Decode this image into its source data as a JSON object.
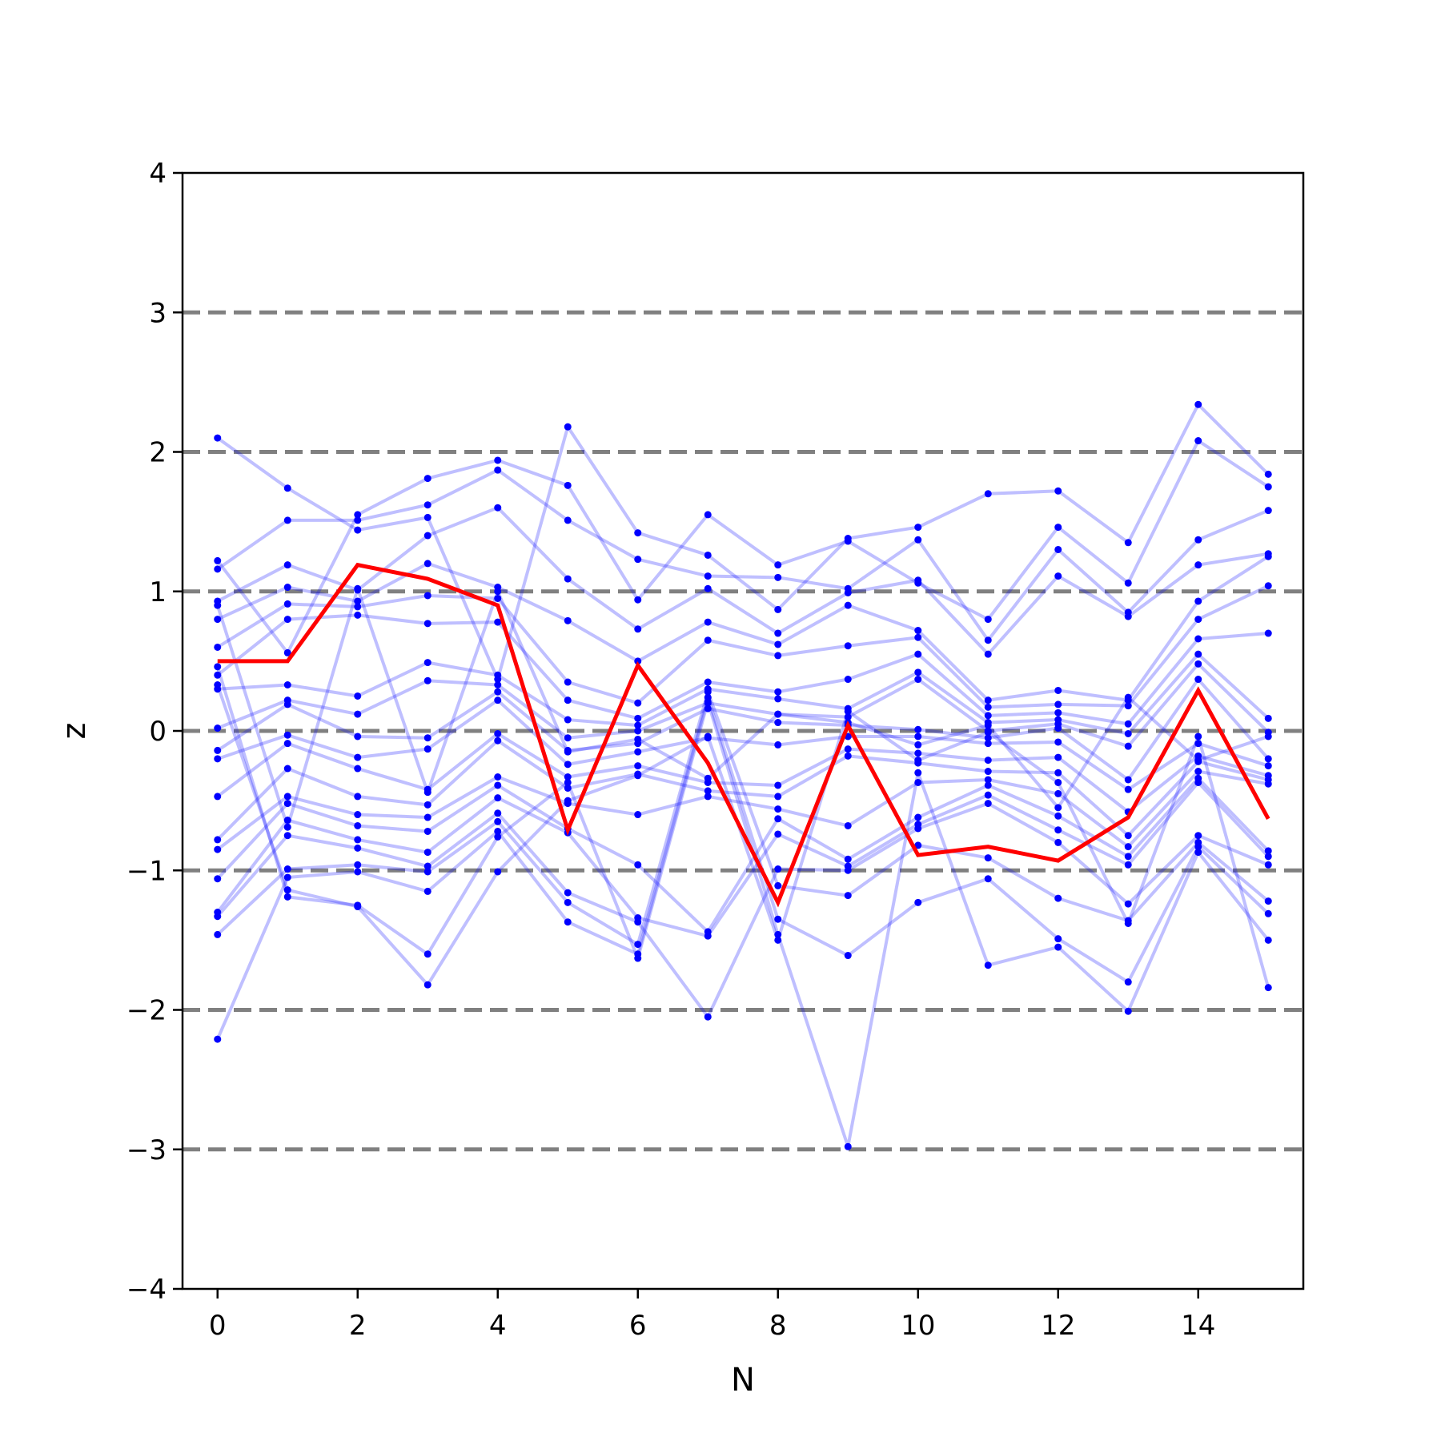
{
  "chart_data": {
    "type": "line",
    "xlabel": "N",
    "ylabel": "z",
    "xlim": [
      -0.5,
      15.5
    ],
    "ylim": [
      -4,
      4
    ],
    "x_ticks": [
      0,
      2,
      4,
      6,
      8,
      10,
      12,
      14
    ],
    "y_ticks": [
      -4,
      -3,
      -2,
      -1,
      0,
      1,
      2,
      3,
      4
    ],
    "y_tick_labels": [
      "−4",
      "−3",
      "−2",
      "−1",
      "0",
      "1",
      "2",
      "3",
      "4"
    ],
    "reference_lines": [
      -3,
      -2,
      -1,
      0,
      1,
      2,
      3
    ],
    "grid": false,
    "legend": "none",
    "colors": {
      "samples": "#0000ff",
      "highlight": "#ff0000",
      "reference": "#808080",
      "axes": "#000000"
    },
    "x": [
      0,
      1,
      2,
      3,
      4,
      5,
      6,
      7,
      8,
      9,
      10,
      11,
      12,
      13,
      14,
      15
    ],
    "highlight_series": {
      "values": [
        0.5,
        0.5,
        1.19,
        1.09,
        0.9,
        -0.71,
        0.47,
        -0.23,
        -1.23,
        0.04,
        -0.89,
        -0.83,
        -0.93,
        -0.62,
        0.29,
        -0.63
      ]
    },
    "series": [
      {
        "values": [
          2.1,
          1.74,
          1.44,
          1.53,
          0.37,
          2.18,
          1.42,
          1.26,
          0.87,
          1.38,
          1.46,
          1.7,
          1.72,
          1.35,
          2.34,
          1.84
        ]
      },
      {
        "values": [
          1.22,
          0.56,
          1.55,
          1.81,
          1.94,
          1.76,
          0.94,
          1.55,
          1.19,
          1.36,
          1.06,
          0.8,
          1.46,
          1.06,
          2.08,
          1.75
        ]
      },
      {
        "values": [
          1.16,
          1.51,
          1.51,
          1.62,
          1.87,
          1.51,
          1.23,
          1.11,
          1.1,
          1.02,
          1.37,
          0.65,
          1.3,
          0.85,
          1.37,
          1.58
        ]
      },
      {
        "values": [
          0.93,
          1.19,
          1.01,
          1.4,
          1.6,
          1.09,
          0.73,
          1.02,
          0.7,
          0.99,
          1.08,
          0.55,
          1.11,
          0.82,
          1.19,
          1.27
        ]
      },
      {
        "values": [
          0.8,
          1.03,
          0.93,
          1.2,
          1.03,
          0.79,
          0.5,
          0.78,
          0.62,
          0.9,
          0.72,
          0.22,
          0.29,
          0.22,
          0.93,
          1.25
        ]
      },
      {
        "values": [
          0.6,
          0.91,
          0.89,
          0.97,
          0.95,
          0.35,
          0.2,
          0.65,
          0.54,
          0.61,
          0.67,
          0.17,
          0.19,
          0.18,
          0.8,
          1.04
        ]
      },
      {
        "values": [
          0.4,
          0.8,
          0.83,
          0.77,
          0.78,
          0.22,
          0.09,
          0.35,
          0.28,
          0.37,
          0.55,
          0.11,
          0.13,
          0.05,
          0.66,
          0.7
        ]
      },
      {
        "values": [
          0.3,
          0.33,
          0.25,
          0.49,
          0.4,
          0.08,
          0.04,
          0.3,
          0.23,
          0.16,
          0.42,
          0.06,
          0.08,
          -0.02,
          0.55,
          0.09
        ]
      },
      {
        "values": [
          0.02,
          0.22,
          0.12,
          0.36,
          0.33,
          -0.05,
          0.0,
          0.2,
          0.12,
          0.1,
          0.37,
          0.0,
          0.05,
          -0.11,
          0.48,
          -0.01
        ]
      },
      {
        "values": [
          -0.14,
          0.19,
          -0.04,
          -0.05,
          0.28,
          -0.14,
          -0.09,
          0.16,
          0.06,
          0.04,
          0.01,
          -0.05,
          0.02,
          -0.35,
          0.37,
          -0.2
        ]
      },
      {
        "values": [
          -0.2,
          -0.03,
          -0.19,
          -0.13,
          0.22,
          -0.24,
          -0.15,
          -0.05,
          -0.1,
          -0.04,
          -0.04,
          -0.09,
          -0.08,
          -0.42,
          -0.09,
          -0.25
        ]
      },
      {
        "values": [
          -0.47,
          -0.09,
          -0.27,
          -0.42,
          -0.02,
          -0.33,
          -0.25,
          -0.37,
          -0.39,
          -0.13,
          -0.16,
          -0.21,
          -0.19,
          -0.58,
          -0.18,
          -0.32
        ]
      },
      {
        "values": [
          -0.78,
          -0.27,
          -0.47,
          -0.53,
          -0.07,
          -0.41,
          -0.31,
          -0.43,
          -0.47,
          -0.18,
          -0.23,
          -0.29,
          -0.3,
          -0.75,
          -0.22,
          -0.35
        ]
      },
      {
        "values": [
          -0.85,
          -0.47,
          -0.6,
          -0.62,
          -0.33,
          -0.52,
          -0.6,
          -0.47,
          -0.56,
          -0.68,
          -0.37,
          -0.35,
          -0.45,
          -0.83,
          -0.29,
          -0.38
        ]
      },
      {
        "values": [
          -1.06,
          -0.52,
          -0.68,
          -0.72,
          -0.39,
          -0.7,
          -0.96,
          -1.44,
          -0.63,
          -0.92,
          -0.62,
          -0.39,
          -0.61,
          -0.9,
          -0.34,
          -0.86
        ]
      },
      {
        "values": [
          -1.3,
          -0.64,
          -0.78,
          -0.87,
          -0.48,
          -0.73,
          -1.34,
          -1.47,
          -0.74,
          -0.97,
          -0.67,
          -0.46,
          -0.71,
          -0.96,
          -0.37,
          -0.9
        ]
      },
      {
        "values": [
          -1.33,
          -0.75,
          -0.84,
          -0.97,
          -0.59,
          -1.16,
          -1.37,
          -2.05,
          -0.99,
          -1.0,
          -0.7,
          -0.52,
          -0.8,
          -1.24,
          -0.75,
          -0.96
        ]
      },
      {
        "values": [
          -1.46,
          -0.99,
          -0.96,
          -1.01,
          -0.65,
          -1.23,
          -1.53,
          0.28,
          -1.11,
          -1.18,
          -0.82,
          -0.91,
          -1.2,
          -1.36,
          -0.8,
          -1.22
        ]
      },
      {
        "values": [
          -2.21,
          -1.05,
          -1.01,
          -1.15,
          -0.72,
          -1.37,
          -1.6,
          0.24,
          -1.35,
          -1.61,
          -1.23,
          -1.06,
          -1.49,
          -1.8,
          -0.83,
          -1.31
        ]
      },
      {
        "values": [
          0.46,
          -1.19,
          -1.25,
          -1.6,
          -0.76,
          -0.37,
          -1.63,
          0.21,
          -1.46,
          -2.98,
          -0.3,
          -1.68,
          -1.55,
          -2.01,
          -0.87,
          -1.5
        ]
      },
      {
        "values": [
          0.33,
          -1.14,
          -1.26,
          -1.82,
          -1.01,
          -0.5,
          -0.32,
          -0.04,
          -1.5,
          0.14,
          -0.21,
          -0.01,
          -0.37,
          -1.38,
          -0.04,
          -1.84
        ]
      },
      {
        "values": [
          0.9,
          -0.69,
          1.02,
          -0.44,
          1.0,
          -0.15,
          -0.06,
          -0.34,
          0.12,
          0.06,
          -0.1,
          0.04,
          -0.55,
          0.24,
          -0.21,
          -0.04
        ]
      }
    ]
  }
}
